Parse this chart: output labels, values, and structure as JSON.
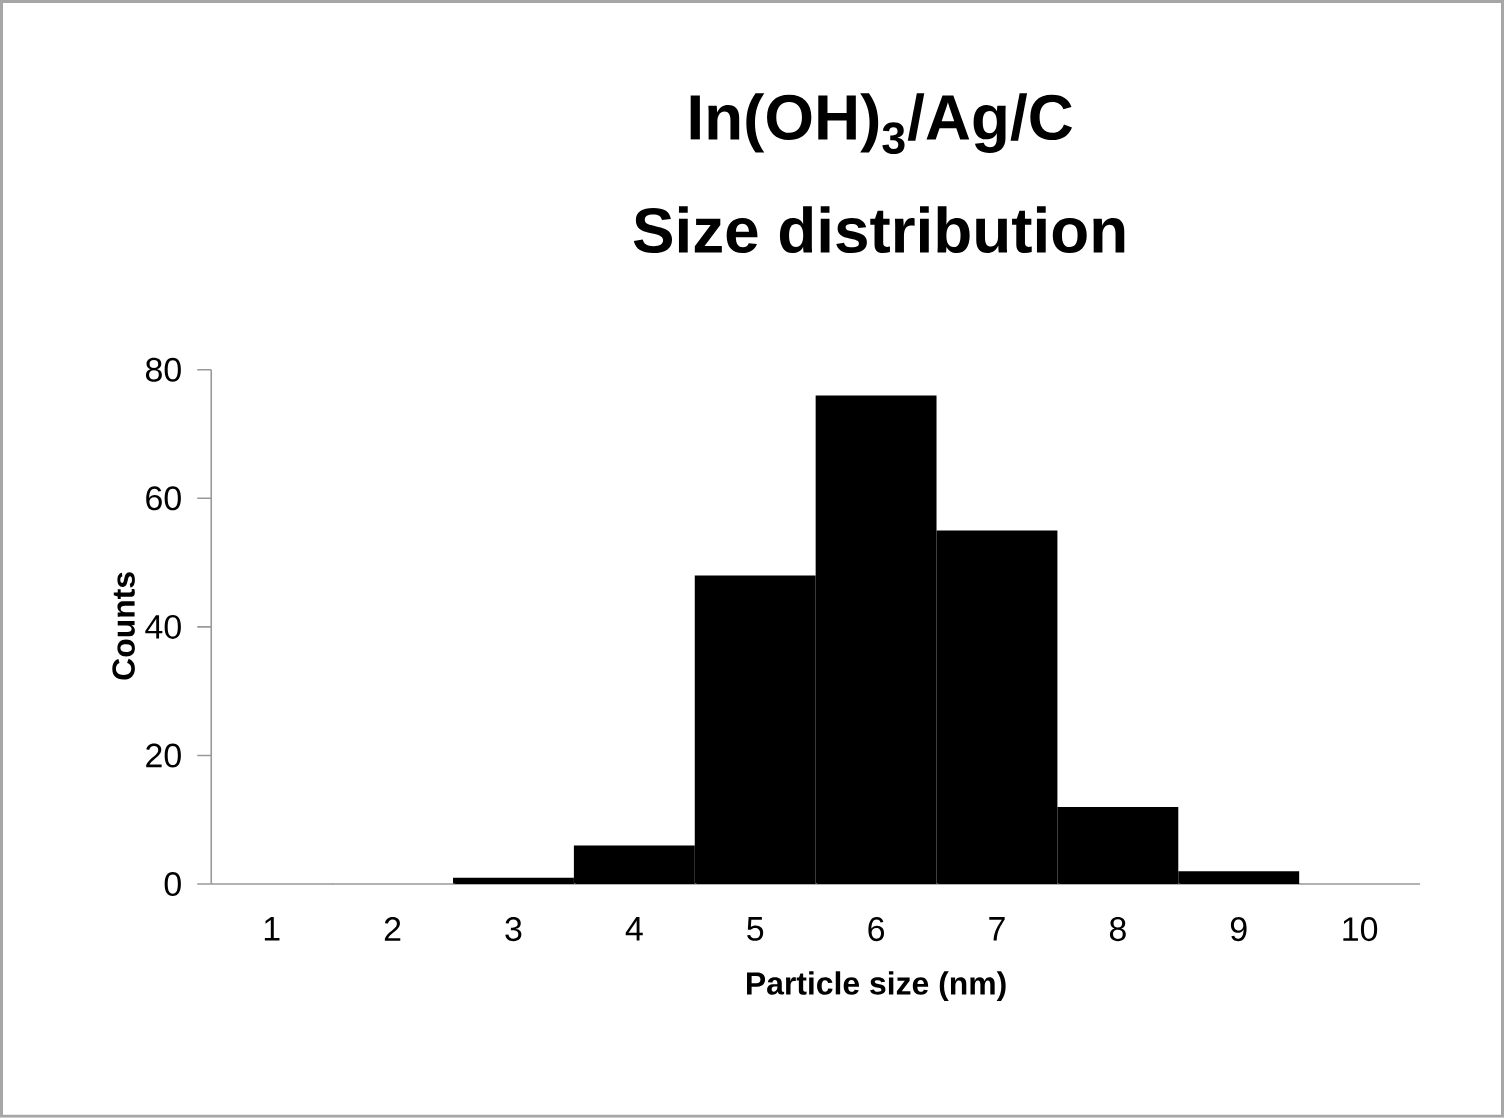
{
  "chart_data": {
    "type": "bar",
    "title": "In(OH)$_{3}$/Ag/C",
    "subtitle": "Size distribution",
    "xlabel": "Particle size (nm)",
    "ylabel": "Counts",
    "categories": [
      "1",
      "2",
      "3",
      "4",
      "5",
      "6",
      "7",
      "8",
      "9",
      "10"
    ],
    "values": [
      0,
      0,
      1,
      6,
      48,
      76,
      55,
      12,
      2,
      0
    ],
    "color": "#000000",
    "ylim": [
      0,
      80
    ],
    "yticks": [
      0,
      20,
      40,
      60,
      80
    ],
    "grid": false
  }
}
